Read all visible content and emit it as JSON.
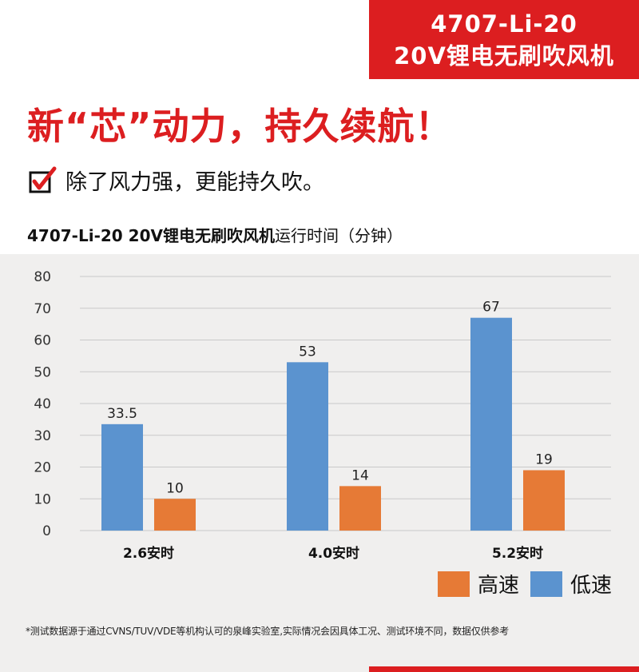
{
  "banner": {
    "line1": "4707-Li-20",
    "line2": "20V锂电无刷吹风机"
  },
  "headline": "新“芯”动力，持久续航！",
  "subheading": "除了风力强，更能持久吹。",
  "chart_title": {
    "bold": "4707-Li-20 20V锂电无刷吹风机",
    "rest": "运行时间（分钟）"
  },
  "colors": {
    "brand_red": "#dc1e20",
    "low_speed_blue": "#5b93cf",
    "high_speed_orange": "#e67a36",
    "chart_background": "#f0efee"
  },
  "chart_data": {
    "type": "bar",
    "categories": [
      "2.6安时",
      "4.0安时",
      "5.2安时"
    ],
    "series": [
      {
        "name": "低速",
        "values": [
          33.5,
          53,
          67
        ],
        "value_labels": [
          "33.5",
          "53",
          "67"
        ],
        "color": "#5b93cf"
      },
      {
        "name": "高速",
        "values": [
          10,
          14,
          19
        ],
        "value_labels": [
          "10",
          "14",
          "19"
        ],
        "color": "#e67a36"
      }
    ],
    "ylim": [
      0,
      80
    ],
    "yticks": [
      0,
      10,
      20,
      30,
      40,
      50,
      60,
      70,
      80
    ],
    "grid": true,
    "legend_position": "bottom-right",
    "legend_order": [
      "高速",
      "低速"
    ]
  },
  "footnote": "*测试数据源于通过CVNS/TUV/VDE等机构认可的泉峰实验室,实际情况会因具体工况、测试环境不同，数据仅供参考"
}
